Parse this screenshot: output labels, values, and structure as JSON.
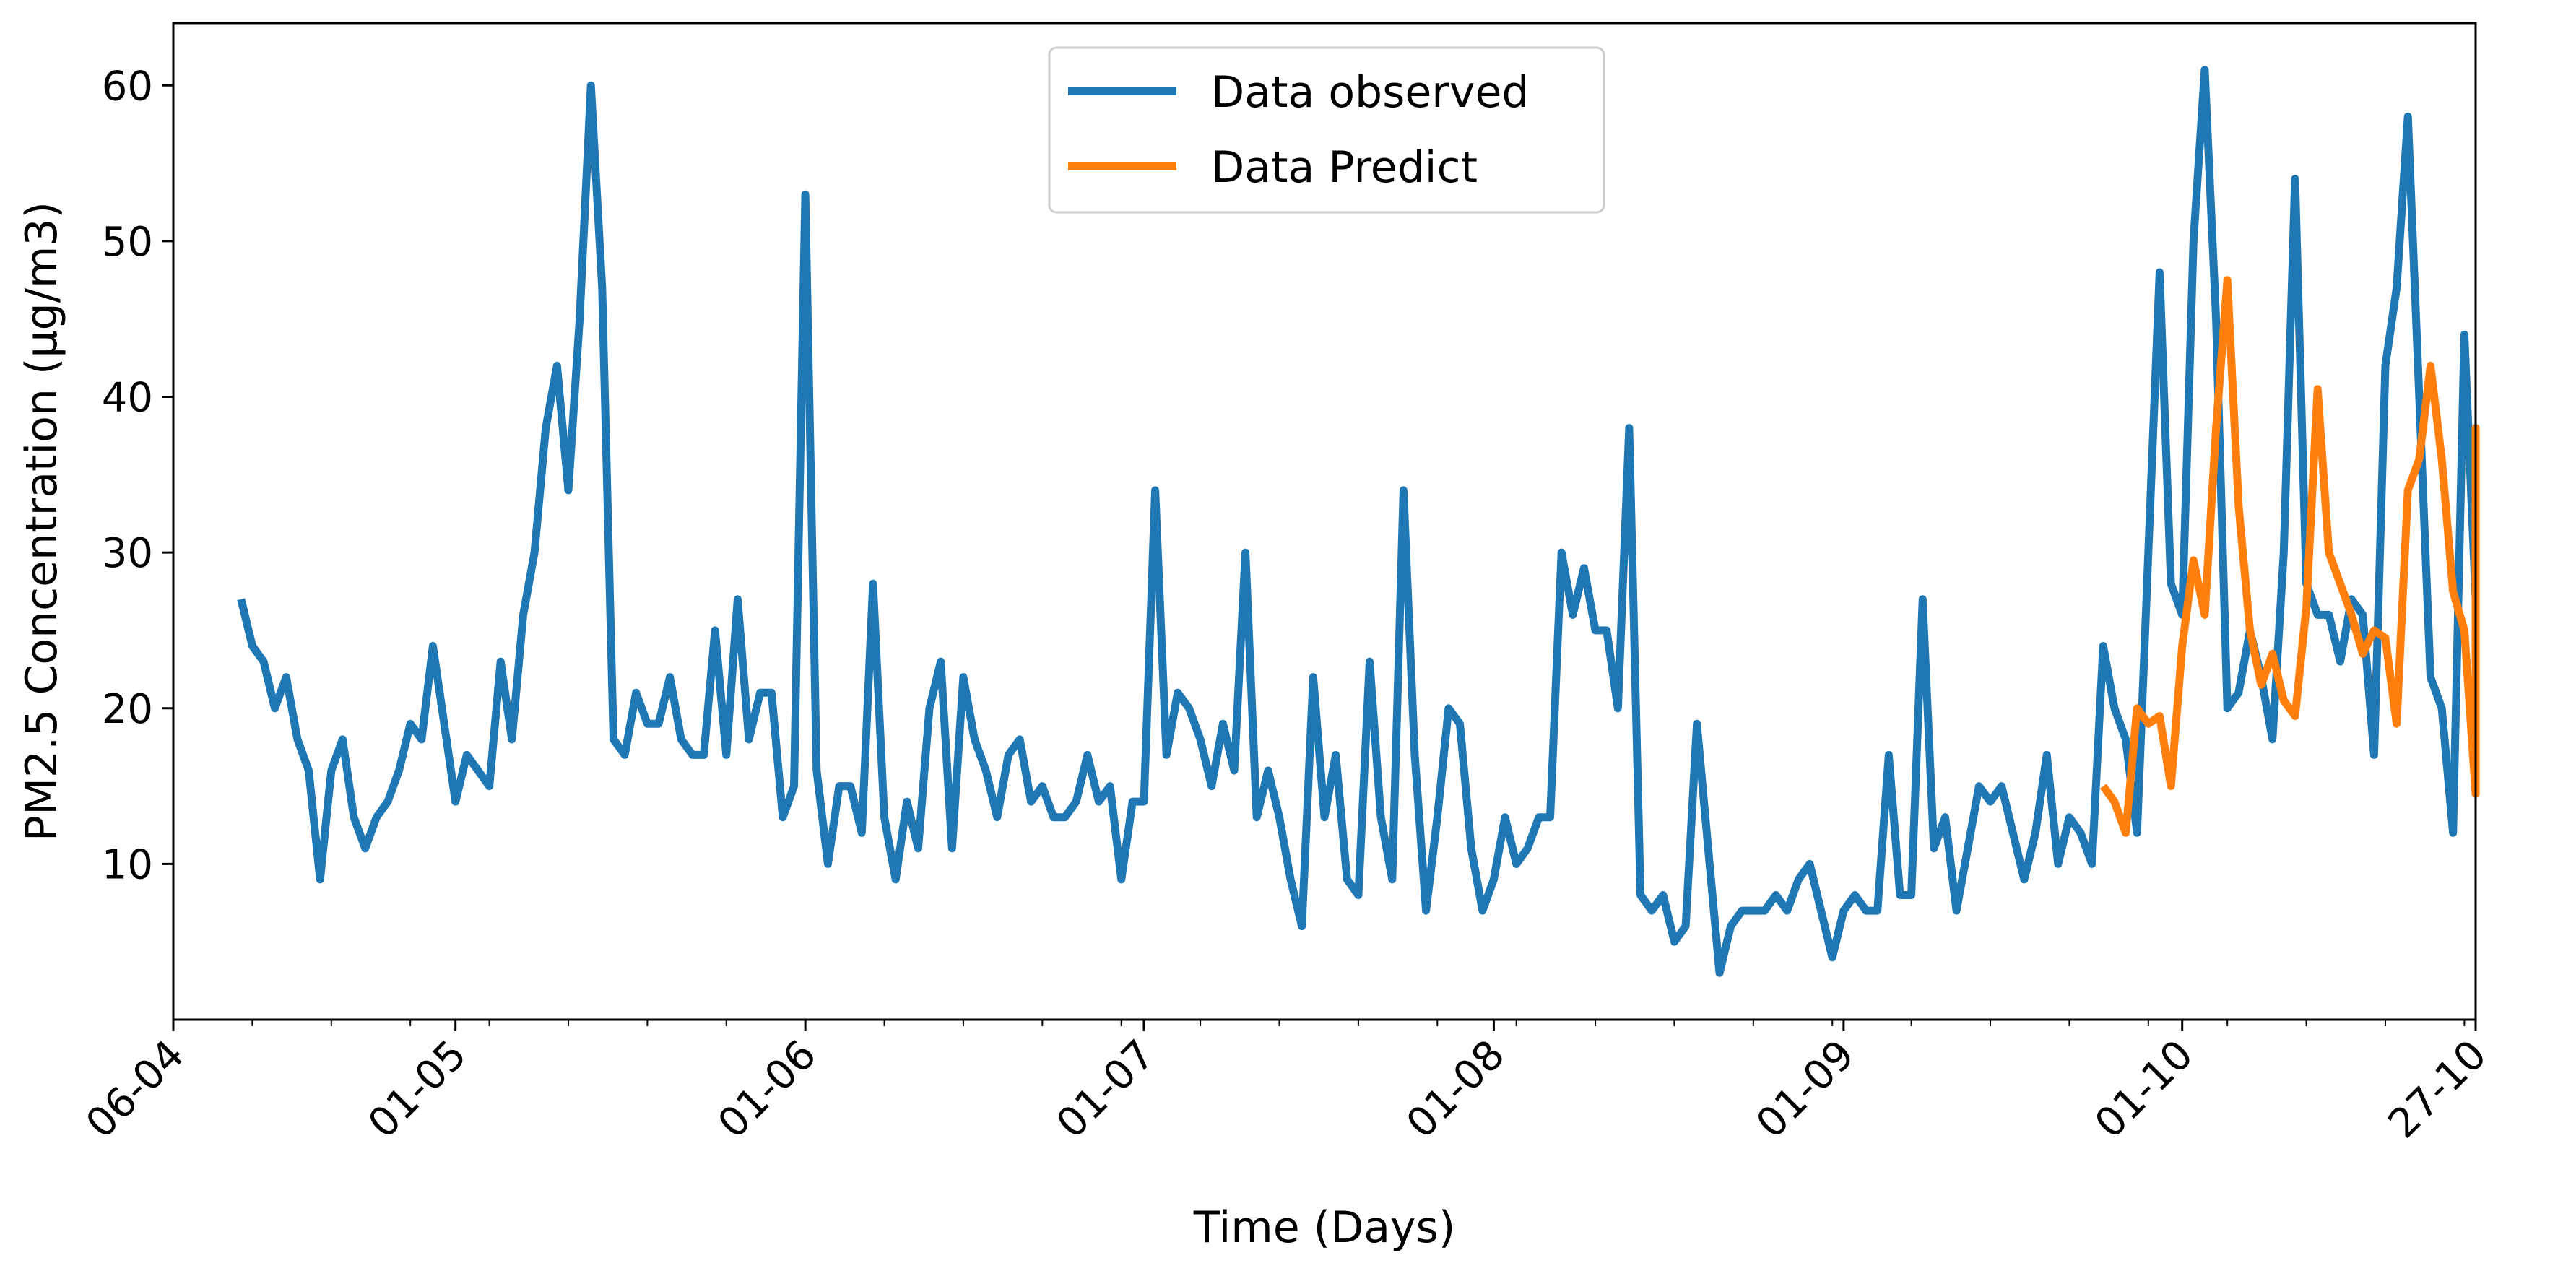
{
  "chart_data": {
    "type": "line",
    "title": "",
    "xlabel": "Time (Days)",
    "ylabel": "PM2.5 Concentration (µg/m3)",
    "xlim": [
      "2024-04-06",
      "2024-10-27"
    ],
    "ylim": [
      0,
      64
    ],
    "grid": false,
    "legend_position": "top-center",
    "x_tick_labels": [
      {
        "date": "2024-04-06",
        "label": "06-04"
      },
      {
        "date": "2024-05-01",
        "label": "01-05"
      },
      {
        "date": "2024-06-01",
        "label": "01-06"
      },
      {
        "date": "2024-07-01",
        "label": "01-07"
      },
      {
        "date": "2024-08-01",
        "label": "01-08"
      },
      {
        "date": "2024-09-01",
        "label": "01-09"
      },
      {
        "date": "2024-10-01",
        "label": "01-10"
      },
      {
        "date": "2024-10-27",
        "label": "27-10"
      }
    ],
    "y_ticks": [
      10,
      20,
      30,
      40,
      50,
      60
    ],
    "series": [
      {
        "name": "Data observed",
        "color": "#1f77b4",
        "x_start": "2024-04-12",
        "x_step_days": 1,
        "values": [
          27,
          24,
          23,
          20,
          22,
          18,
          16,
          9,
          16,
          18,
          13,
          11,
          13,
          14,
          16,
          19,
          18,
          24,
          19,
          14,
          17,
          16,
          15,
          23,
          18,
          26,
          30,
          38,
          42,
          34,
          45,
          60,
          47,
          18,
          17,
          21,
          19,
          19,
          22,
          18,
          17,
          17,
          25,
          17,
          27,
          18,
          21,
          21,
          13,
          15,
          53,
          16,
          10,
          15,
          15,
          12,
          28,
          13,
          9,
          14,
          11,
          20,
          23,
          11,
          22,
          18,
          16,
          13,
          17,
          18,
          14,
          15,
          13,
          13,
          14,
          17,
          14,
          15,
          9,
          14,
          14,
          34,
          17,
          21,
          20,
          18,
          15,
          19,
          16,
          30,
          13,
          16,
          13,
          9,
          6,
          22,
          13,
          17,
          9,
          8,
          23,
          13,
          9,
          34,
          17,
          7,
          13,
          20,
          19,
          11,
          7,
          9,
          13,
          10,
          11,
          13,
          13,
          30,
          26,
          29,
          25,
          25,
          20,
          38,
          8,
          7,
          8,
          5,
          6,
          19,
          11,
          3,
          6,
          7,
          7,
          7,
          8,
          7,
          9,
          10,
          7,
          4,
          7,
          8,
          7,
          7,
          17,
          8,
          8,
          27,
          11,
          13,
          7,
          11,
          15,
          14,
          15,
          12,
          9,
          12,
          17,
          10,
          13,
          12,
          10,
          24,
          20,
          18,
          12,
          30,
          48,
          28,
          26,
          50,
          61,
          45,
          20,
          21,
          25,
          22,
          18,
          30,
          54,
          28,
          26,
          26,
          23,
          27,
          26,
          17,
          42,
          47,
          58,
          40,
          22,
          20,
          12,
          44,
          27,
          25
        ]
      },
      {
        "name": "Data Predict",
        "color": "#ff7f0e",
        "x_start": "2024-09-24",
        "x_step_days": 1,
        "values": [
          15,
          14,
          12,
          20,
          19,
          19.5,
          15,
          24,
          29.5,
          26,
          38,
          47.5,
          33,
          25,
          21.5,
          23.5,
          20.5,
          19.5,
          26.5,
          40.5,
          30,
          28,
          26,
          23.5,
          25,
          24.5,
          19,
          34,
          36,
          42,
          36,
          27.5,
          25,
          14.5,
          38,
          27
        ]
      }
    ]
  }
}
